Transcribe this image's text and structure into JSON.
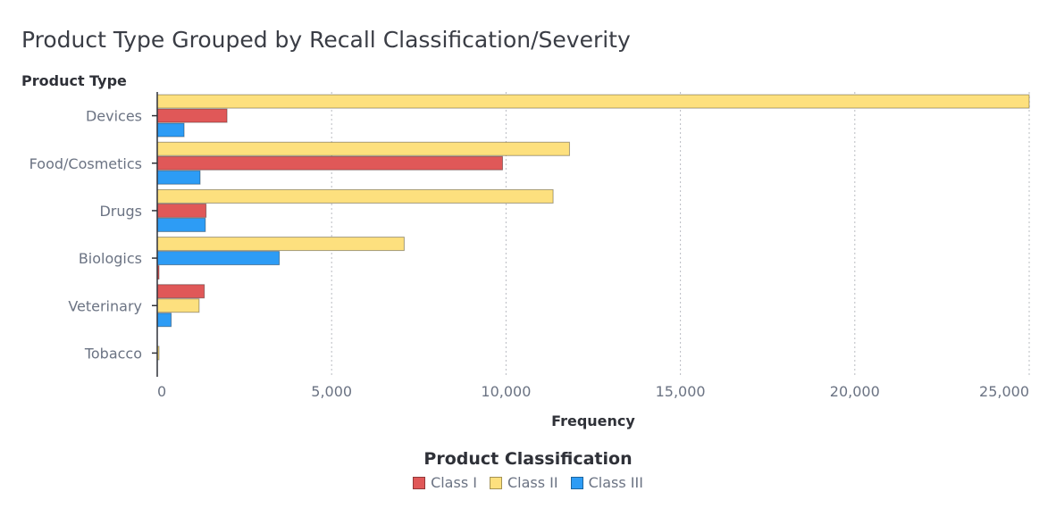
{
  "chart_data": {
    "type": "bar",
    "orientation": "horizontal",
    "title": "Product Type Grouped by Recall Classification/Severity",
    "ylabel": "Product Type",
    "xlabel": "Frequency",
    "categories": [
      "Devices",
      "Food/Cosmetics",
      "Drugs",
      "Biologics",
      "Veterinary",
      "Tobacco"
    ],
    "series": [
      {
        "name": "Class II",
        "color": "#fde07e",
        "values": [
          25000,
          11820,
          11350,
          7080,
          1200,
          25
        ]
      },
      {
        "name": "Class I",
        "color": "#e05858",
        "values": [
          2000,
          9900,
          1400,
          20,
          1350,
          0
        ]
      },
      {
        "name": "Class III",
        "color": "#2d9cf5",
        "values": [
          770,
          1230,
          1380,
          3500,
          400,
          0
        ]
      }
    ],
    "bar_order": {
      "Devices": [
        "Class II",
        "Class I",
        "Class III"
      ],
      "Food/Cosmetics": [
        "Class II",
        "Class I",
        "Class III"
      ],
      "Drugs": [
        "Class II",
        "Class I",
        "Class III"
      ],
      "Biologics": [
        "Class II",
        "Class III",
        "Class I"
      ],
      "Veterinary": [
        "Class I",
        "Class II",
        "Class III"
      ],
      "Tobacco": [
        "Class II"
      ]
    },
    "xlim": [
      0,
      25000
    ],
    "xticks": [
      0,
      5000,
      10000,
      15000,
      20000,
      25000
    ],
    "xtick_labels": [
      "0",
      "5,000",
      "10,000",
      "15,000",
      "20,000",
      "25,000"
    ],
    "grid": "vertical dashed",
    "legend_title": "Product Classification",
    "legend": [
      "Class I",
      "Class II",
      "Class III"
    ],
    "legend_placement": "bottom"
  }
}
